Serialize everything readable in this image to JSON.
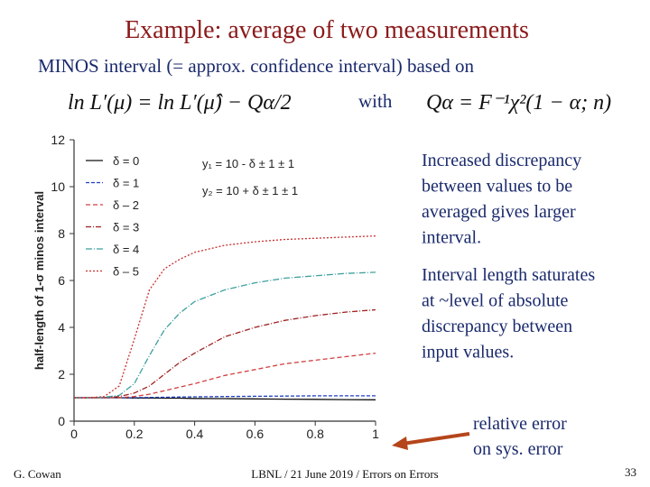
{
  "title": "Example:  average of two measurements",
  "intro": "MINOS interval (= approx. confidence interval) based on",
  "equation_left": "ln L′(μ) = ln L′(μ̂) − Qα/2",
  "with": "with",
  "equation_right": "Qα = F⁻¹χ²(1 − α; n)",
  "notes": [
    [
      "Increased discrepancy",
      "between values to be",
      "averaged gives larger",
      "interval."
    ],
    [
      "Interval length saturates",
      "at ~level of absolute",
      "discrepancy between",
      "input values."
    ]
  ],
  "arrow_note": [
    "relative error",
    "on sys. error"
  ],
  "footer": {
    "author": "G. Cowan",
    "center": "LBNL / 21 June 2019 / Errors on Errors",
    "page": "33"
  },
  "chart_data": {
    "type": "line",
    "ylabel": "half-length of 1-σ minos interval",
    "annotations": [
      "y₁ = 10 - δ ± 1 ± 1",
      "y₂ = 10 + δ ± 1 ± 1"
    ],
    "x": [
      0,
      0.05,
      0.1,
      0.15,
      0.2,
      0.25,
      0.3,
      0.35,
      0.4,
      0.5,
      0.6,
      0.7,
      0.8,
      0.9,
      1.0
    ],
    "xlim": [
      0,
      1
    ],
    "xticks": [
      0,
      0.2,
      0.4,
      0.6,
      0.8,
      1
    ],
    "ylim": [
      0,
      12
    ],
    "yticks": [
      0,
      2,
      4,
      6,
      8,
      10,
      12
    ],
    "series": [
      {
        "name": "δ = 0",
        "color": "#111111",
        "values": [
          1,
          1,
          1,
          1,
          0.99,
          0.99,
          0.98,
          0.98,
          0.97,
          0.96,
          0.95,
          0.94,
          0.93,
          0.92,
          0.91
        ]
      },
      {
        "name": "δ = 1",
        "color": "#1f3fbf",
        "values": [
          1,
          1,
          1,
          1,
          1,
          1.01,
          1.02,
          1.03,
          1.04,
          1.05,
          1.06,
          1.07,
          1.08,
          1.08,
          1.08
        ]
      },
      {
        "name": "δ – 2",
        "color": "#d04040",
        "values": [
          1,
          1,
          1,
          1,
          1.05,
          1.15,
          1.3,
          1.45,
          1.6,
          1.95,
          2.2,
          2.45,
          2.6,
          2.75,
          2.9
        ]
      },
      {
        "name": "δ = 3",
        "color": "#a02020",
        "values": [
          1,
          1,
          1,
          1.05,
          1.2,
          1.5,
          2.0,
          2.5,
          2.9,
          3.6,
          4.0,
          4.3,
          4.5,
          4.65,
          4.75
        ]
      },
      {
        "name": "δ = 4",
        "color": "#3fa0a0",
        "values": [
          1,
          1,
          1.02,
          1.1,
          1.6,
          2.8,
          3.9,
          4.6,
          5.1,
          5.6,
          5.9,
          6.1,
          6.2,
          6.3,
          6.35
        ]
      },
      {
        "name": "δ – 5",
        "color": "#c83030",
        "values": [
          1,
          1,
          1.05,
          1.5,
          3.5,
          5.6,
          6.5,
          6.9,
          7.2,
          7.5,
          7.65,
          7.75,
          7.8,
          7.85,
          7.9
        ]
      }
    ]
  }
}
